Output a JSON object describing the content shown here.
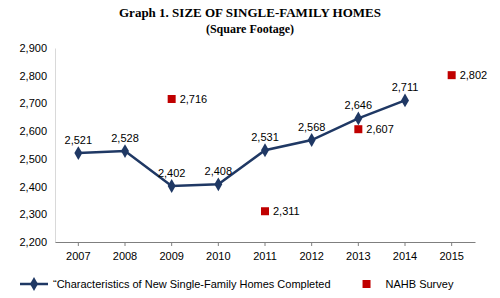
{
  "chart_data": {
    "type": "line",
    "title": "Graph 1. SIZE OF SINGLE-FAMILY HOMES",
    "subtitle": "(Square Footage)",
    "categories": [
      "2007",
      "2008",
      "2009",
      "2010",
      "2011",
      "2012",
      "2013",
      "2014",
      "2015"
    ],
    "series": [
      {
        "name": "“Characteristics of New Single-Family Homes Completed",
        "type": "line",
        "color": "#1f3864",
        "marker": "diamond",
        "line_style": "solid",
        "values": [
          2521,
          2528,
          2402,
          2408,
          2531,
          2568,
          2646,
          2711,
          null
        ],
        "value_labels": [
          "2,521",
          "2,528",
          "2,402",
          "2,408",
          "2,531",
          "2,568",
          "2,646",
          "2,711",
          null
        ]
      },
      {
        "name": "NAHB Survey",
        "type": "scatter",
        "color": "#c00000",
        "marker": "square",
        "values": [
          null,
          null,
          2716,
          null,
          2311,
          null,
          2607,
          null,
          2802
        ],
        "value_labels": [
          null,
          null,
          "2,716",
          null,
          "2,311",
          null,
          "2,607",
          null,
          "2,802"
        ]
      }
    ],
    "ylim": [
      2200,
      2900
    ],
    "yticks": [
      {
        "value": 2200,
        "label": "2,200"
      },
      {
        "value": 2300,
        "label": "2,300"
      },
      {
        "value": 2400,
        "label": "2,400"
      },
      {
        "value": 2500,
        "label": "2,500"
      },
      {
        "value": 2600,
        "label": "2,600"
      },
      {
        "value": 2700,
        "label": "2,700"
      },
      {
        "value": 2800,
        "label": "2,800"
      },
      {
        "value": 2900,
        "label": "2,900"
      }
    ],
    "grid": false,
    "legend": "bottom",
    "data_labels": true
  }
}
